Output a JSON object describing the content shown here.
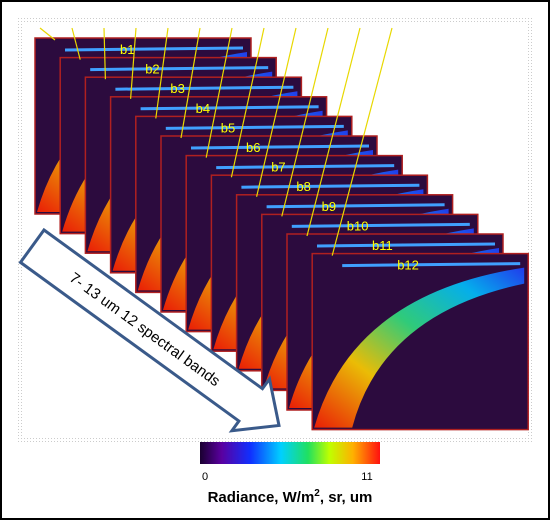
{
  "bands": [
    "b1",
    "b2",
    "b3",
    "b4",
    "b5",
    "b6",
    "b7",
    "b8",
    "b9",
    "b10",
    "b11",
    "b12"
  ],
  "arrow_text": "7- 13 um 12 spectral bands",
  "colorbar": {
    "min_label": "0",
    "max_label": "11",
    "label": "Radiance, W/m",
    "label_sup": "2",
    "label_rest": ", sr, um"
  }
}
